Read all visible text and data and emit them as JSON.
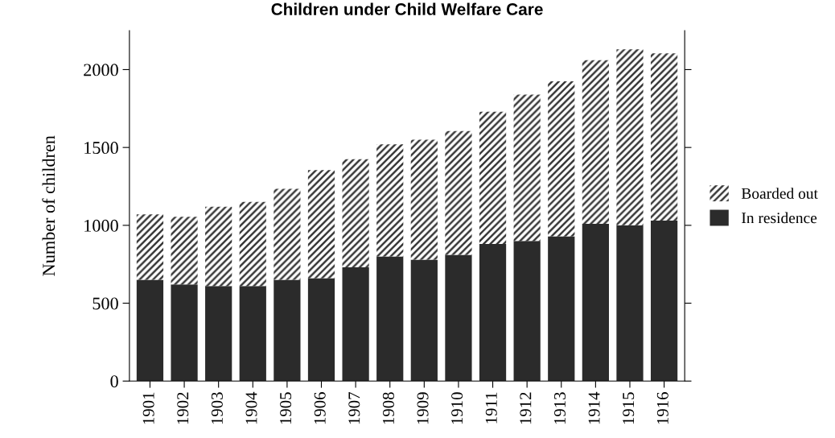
{
  "chart_data": {
    "type": "bar",
    "title": "Children under Child Welfare Care",
    "ylabel": "Number of children",
    "categories": [
      "1901",
      "1902",
      "1903",
      "1904",
      "1905",
      "1906",
      "1907",
      "1908",
      "1909",
      "1910",
      "1911",
      "1912",
      "1913",
      "1914",
      "1915",
      "1916"
    ],
    "stacked": true,
    "series": [
      {
        "name": "In residence",
        "color": "#2b2b2b",
        "values": [
          650,
          620,
          610,
          610,
          650,
          660,
          730,
          800,
          780,
          810,
          880,
          900,
          930,
          1010,
          1000,
          1030
        ]
      },
      {
        "name": "Boarded out",
        "color": "#333333",
        "values": [
          420,
          435,
          510,
          540,
          585,
          695,
          695,
          720,
          770,
          795,
          850,
          940,
          995,
          1050,
          1130,
          1075
        ]
      }
    ],
    "ylim": [
      0,
      2250
    ],
    "yticks": [
      0,
      500,
      1000,
      1500,
      2000
    ],
    "grid": false,
    "legend": "right"
  }
}
